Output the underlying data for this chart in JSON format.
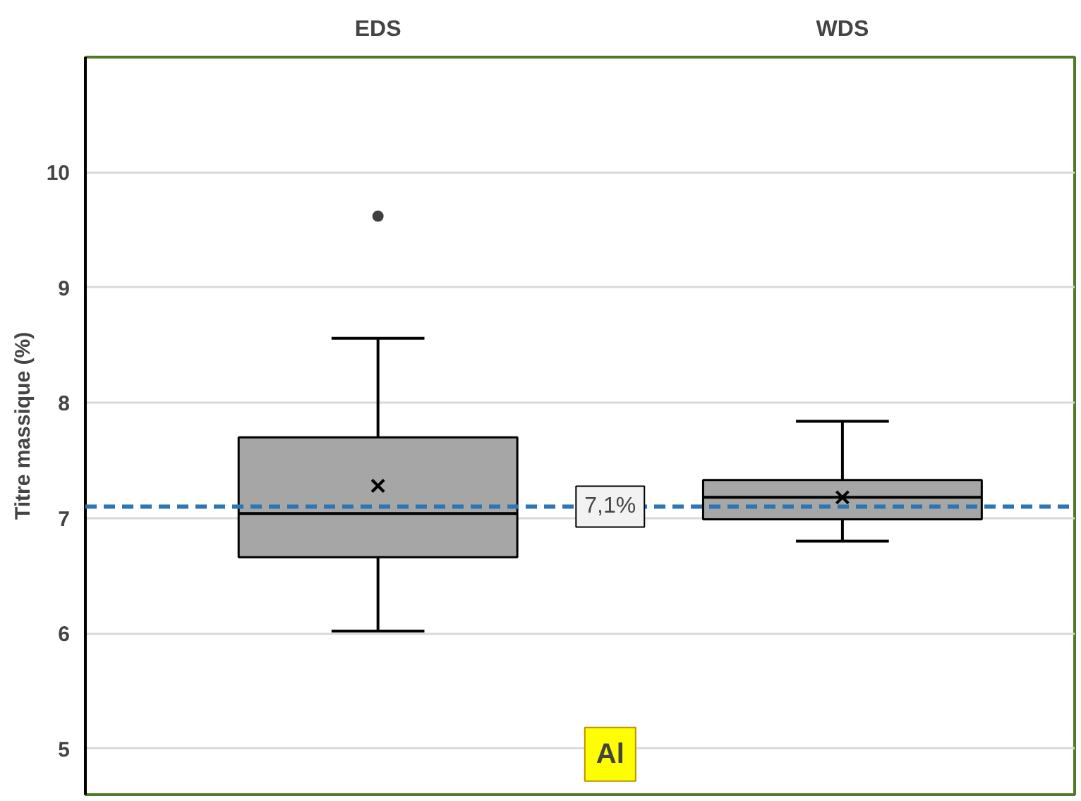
{
  "chart_data": {
    "type": "box",
    "categories": [
      "EDS",
      "WDS"
    ],
    "boxes": [
      {
        "low": 6.02,
        "q1": 6.66,
        "median": 7.04,
        "q3": 7.7,
        "high": 8.56,
        "mean": 7.28,
        "outliers": [
          9.62
        ]
      },
      {
        "low": 6.8,
        "q1": 6.99,
        "median": 7.18,
        "q3": 7.33,
        "high": 7.84,
        "mean": 7.18
      }
    ],
    "colors": [
      "#a6a6a6",
      "#a6a6a6"
    ],
    "ylabel": "Titre massique (%)",
    "ylim": [
      4.6,
      11
    ],
    "yticks": [
      5,
      6,
      7,
      8,
      9,
      10
    ],
    "grid": "y",
    "ref_lines": [
      {
        "axis": "y",
        "value": 7.1,
        "label": "7,1%",
        "color": "#2e75b6",
        "line_style": "dashed"
      }
    ],
    "annotations": [
      "Al"
    ]
  }
}
